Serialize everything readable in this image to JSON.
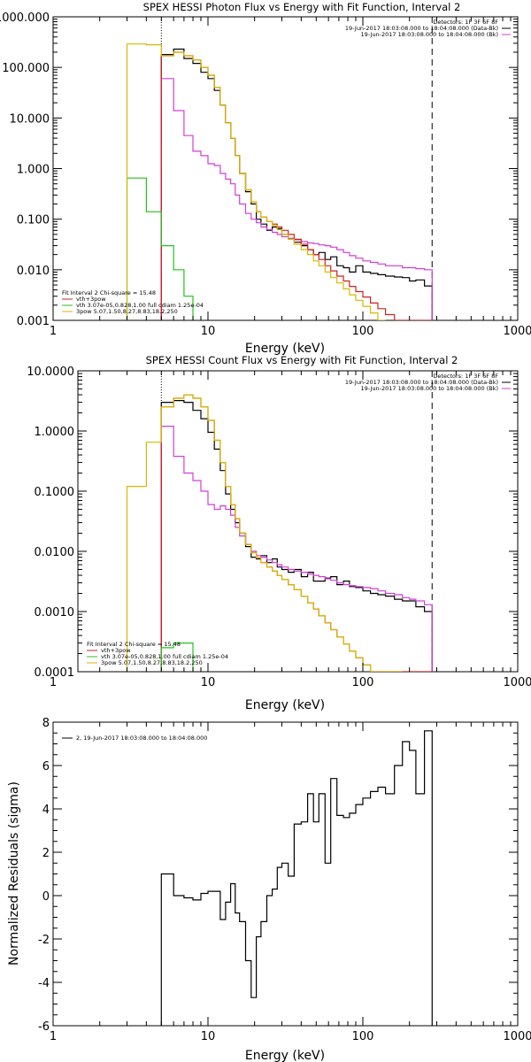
{
  "colors": {
    "black": "#000000",
    "magenta": "#d13ed6",
    "red": "#d22020",
    "green": "#22c41c",
    "yellow": "#d9b800"
  },
  "chart_data": [
    {
      "type": "line",
      "title": "SPEX HESSI Photon Flux vs Energy with Fit Function, Interval 2",
      "xlabel": "Energy (keV)",
      "ylabel": "",
      "xscale": "log",
      "yscale": "log",
      "xlim": [
        1,
        1000
      ],
      "ylim": [
        0.001,
        1000
      ],
      "xtick_labels": [
        "1",
        "10",
        "100",
        "1000"
      ],
      "ytick_labels": [
        "0.001",
        "0.010",
        "0.100",
        "1.000",
        "10.000",
        "100.000",
        "1000.000"
      ],
      "ytick_values": [
        0.001,
        0.01,
        0.1,
        1,
        10,
        100,
        1000
      ],
      "vlines": [
        {
          "x": 5.0,
          "style": "dotted"
        },
        {
          "x": 280,
          "style": "dashed"
        }
      ],
      "legend_top_right": [
        {
          "text": "Detectors: 1F 3F 6F 8F",
          "color": "black"
        },
        {
          "text": "19-Jun-2017 18:03:08.000 to 18:04:08.000 (Data-Bk)",
          "color": "black"
        },
        {
          "text": "19-Jun-2017 18:03:08.000 to 18:04:08.000 (Bk)",
          "color": "magenta"
        }
      ],
      "legend_bottom_left": [
        {
          "text": "Fit Interval 2   Chi-square = 15.48",
          "color": "black"
        },
        {
          "text": "vth+3pow",
          "color": "red"
        },
        {
          "text": "vth 3.07e-05,0.828,1.00  full cdiam 1.25e-04",
          "color": "green"
        },
        {
          "text": "3pow 5.07,1.50,8.27,8.83,18.2,250",
          "color": "yellow"
        }
      ],
      "series": [
        {
          "key": "data_bk",
          "color": "black",
          "edges": [
            5.0,
            6.0,
            7.0,
            8.0,
            9.0,
            10.0,
            11.0,
            12.0,
            13.0,
            14.0,
            15.0,
            16.0,
            17.5,
            19.0,
            20.5,
            22.0,
            24.0,
            26.0,
            28.0,
            30.0,
            33.0,
            36.0,
            40.0,
            44.0,
            48.0,
            52.0,
            57.0,
            62.0,
            68.0,
            75.0,
            82.0,
            90.0,
            100.0,
            112.0,
            125.0,
            140.0,
            160.0,
            180.0,
            200.0,
            220.0,
            250.0,
            280.0
          ],
          "values": [
            180,
            230,
            150,
            120,
            80,
            60,
            35,
            18,
            8,
            4,
            1.8,
            0.8,
            0.35,
            0.2,
            0.1,
            0.08,
            0.06,
            0.07,
            0.065,
            0.05,
            0.04,
            0.035,
            0.03,
            0.025,
            0.02,
            0.022,
            0.016,
            0.018,
            0.012,
            0.011,
            0.009,
            0.012,
            0.009,
            0.0085,
            0.008,
            0.0075,
            0.0072,
            0.007,
            0.006,
            0.0063,
            0.0048
          ]
        },
        {
          "key": "background",
          "color": "magenta",
          "edges": [
            5.0,
            6.0,
            7.0,
            8.0,
            9.0,
            10.0,
            11.0,
            12.0,
            13.0,
            14.0,
            15.0,
            16.0,
            17.5,
            19.0,
            20.5,
            22.0,
            24.0,
            26.0,
            28.0,
            30.0,
            33.0,
            36.0,
            40.0,
            44.0,
            48.0,
            52.0,
            57.0,
            62.0,
            68.0,
            75.0,
            82.0,
            90.0,
            100.0,
            112.0,
            125.0,
            140.0,
            160.0,
            180.0,
            200.0,
            220.0,
            250.0,
            280.0
          ],
          "values": [
            60,
            14,
            4.5,
            2.2,
            1.8,
            1.25,
            1.15,
            0.8,
            0.62,
            0.5,
            0.3,
            0.2,
            0.13,
            0.1,
            0.085,
            0.07,
            0.062,
            0.055,
            0.05,
            0.045,
            0.042,
            0.039,
            0.036,
            0.034,
            0.033,
            0.031,
            0.03,
            0.028,
            0.025,
            0.022,
            0.019,
            0.017,
            0.015,
            0.014,
            0.013,
            0.012,
            0.012,
            0.011,
            0.011,
            0.0105,
            0.01
          ]
        },
        {
          "key": "total_fit",
          "color": "red",
          "edges": [
            5.0,
            6.0,
            7.0,
            8.0,
            9.0,
            10.0,
            11.0,
            12.0,
            13.0,
            14.0,
            15.0,
            16.0,
            17.5,
            19.0,
            20.5,
            22.0,
            24.0,
            26.0,
            28.0,
            30.0,
            33.0,
            36.0,
            40.0,
            44.0,
            48.0,
            52.0,
            57.0,
            62.0,
            68.0,
            75.0,
            82.0,
            90.0,
            100.0,
            112.0,
            125.0,
            140.0,
            160.0,
            180.0,
            200.0,
            220.0,
            250.0,
            280.0
          ],
          "values": [
            170,
            200,
            170,
            140,
            100,
            70,
            40,
            18,
            8,
            4,
            1.8,
            0.8,
            0.38,
            0.22,
            0.14,
            0.11,
            0.09,
            0.08,
            0.07,
            0.06,
            0.05,
            0.04,
            0.032,
            0.025,
            0.02,
            0.016,
            0.012,
            0.0095,
            0.0075,
            0.006,
            0.0047,
            0.0037,
            0.0029,
            0.0022,
            0.0017,
            0.0013,
            0.001,
            0.001,
            0.001,
            0.001,
            0.001
          ]
        },
        {
          "key": "vth",
          "color": "green",
          "edges": [
            3.0,
            4.0,
            5.0,
            6.0,
            7.0,
            8.0
          ],
          "values": [
            0.65,
            0.14,
            0.03,
            0.01,
            0.003
          ]
        },
        {
          "key": "3pow",
          "color": "yellow",
          "edges": [
            3.0,
            4.0,
            5.0,
            6.0,
            7.0,
            8.0,
            9.0,
            10.0,
            11.0,
            12.0,
            13.0,
            14.0,
            15.0,
            16.0,
            17.5,
            19.0,
            20.5,
            22.0,
            24.0,
            26.0,
            28.0,
            30.0,
            33.0,
            36.0,
            40.0,
            44.0,
            48.0,
            52.0,
            57.0,
            62.0,
            68.0,
            75.0,
            82.0,
            90.0,
            100.0,
            112.0,
            125.0,
            140.0
          ],
          "values": [
            290,
            280,
            170,
            200,
            170,
            140,
            100,
            70,
            40,
            18,
            8,
            4,
            1.8,
            0.8,
            0.38,
            0.22,
            0.14,
            0.11,
            0.09,
            0.075,
            0.062,
            0.05,
            0.04,
            0.032,
            0.025,
            0.02,
            0.015,
            0.012,
            0.009,
            0.007,
            0.0055,
            0.0042,
            0.0032,
            0.0025,
            0.0019,
            0.0014,
            0.001
          ]
        }
      ]
    },
    {
      "type": "line",
      "title": "SPEX HESSI Count Flux vs Energy with Fit Function, Interval 2",
      "xlabel": "Energy (keV)",
      "ylabel": "",
      "xscale": "log",
      "yscale": "log",
      "xlim": [
        1,
        1000
      ],
      "ylim": [
        0.0001,
        10
      ],
      "xtick_labels": [
        "1",
        "10",
        "100",
        "1000"
      ],
      "ytick_labels": [
        "0.0001",
        "0.0010",
        "0.0100",
        "0.1000",
        "1.0000",
        "10.0000"
      ],
      "ytick_values": [
        0.0001,
        0.001,
        0.01,
        0.1,
        1,
        10
      ],
      "vlines": [
        {
          "x": 5.0,
          "style": "dotted"
        },
        {
          "x": 280,
          "style": "dashed"
        }
      ],
      "legend_top_right": [
        {
          "text": "Detectors: 1F 3F 6F 8F",
          "color": "black"
        },
        {
          "text": "19-Jun-2017 18:03:08.000 to 18:04:08.000 (Data-Bk)",
          "color": "black"
        },
        {
          "text": "19-Jun-2017 18:03:08.000 to 18:04:08.000 (Bk)",
          "color": "magenta"
        }
      ],
      "legend_bottom_left": [
        {
          "text": "Fit Interval 2   Chi-square = 15.48",
          "color": "black"
        },
        {
          "text": "vth+3pow",
          "color": "red"
        },
        {
          "text": "vth 3.07e-05,0.828,1.00  full cdiam 1.25e-04",
          "color": "green"
        },
        {
          "text": "3pow 5.07,1.50,8.27,8.83,18.2,250",
          "color": "yellow"
        }
      ],
      "series": [
        {
          "key": "data_bk",
          "color": "black",
          "edges": [
            5.0,
            6.0,
            7.0,
            8.0,
            9.0,
            10.0,
            11.0,
            12.0,
            13.0,
            14.0,
            15.0,
            16.0,
            17.5,
            19.0,
            20.5,
            22.0,
            24.0,
            26.0,
            28.0,
            30.0,
            33.0,
            36.0,
            40.0,
            44.0,
            48.0,
            52.0,
            57.0,
            62.0,
            68.0,
            75.0,
            82.0,
            90.0,
            100.0,
            112.0,
            125.0,
            140.0,
            160.0,
            180.0,
            200.0,
            220.0,
            250.0,
            280.0
          ],
          "values": [
            3.0,
            3.2,
            3.0,
            2.2,
            1.6,
            0.95,
            0.5,
            0.22,
            0.09,
            0.05,
            0.03,
            0.02,
            0.012,
            0.008,
            0.0075,
            0.0085,
            0.0065,
            0.0075,
            0.0055,
            0.005,
            0.0045,
            0.005,
            0.0038,
            0.0045,
            0.0032,
            0.0032,
            0.0036,
            0.0038,
            0.0028,
            0.0032,
            0.0026,
            0.0025,
            0.0022,
            0.002,
            0.0019,
            0.0018,
            0.0016,
            0.0015,
            0.0015,
            0.0012,
            0.001
          ]
        },
        {
          "key": "background",
          "color": "magenta",
          "edges": [
            5.0,
            6.0,
            7.0,
            8.0,
            9.0,
            10.0,
            11.0,
            12.0,
            13.0,
            14.0,
            15.0,
            16.0,
            17.5,
            19.0,
            20.5,
            22.0,
            24.0,
            26.0,
            28.0,
            30.0,
            33.0,
            36.0,
            40.0,
            44.0,
            48.0,
            52.0,
            57.0,
            62.0,
            68.0,
            75.0,
            82.0,
            90.0,
            100.0,
            112.0,
            125.0,
            140.0,
            160.0,
            180.0,
            200.0,
            220.0,
            250.0,
            280.0
          ],
          "values": [
            1.2,
            0.38,
            0.2,
            0.15,
            0.1,
            0.06,
            0.05,
            0.057,
            0.05,
            0.04,
            0.025,
            0.018,
            0.013,
            0.01,
            0.0085,
            0.008,
            0.0072,
            0.0065,
            0.006,
            0.0055,
            0.005,
            0.0047,
            0.0045,
            0.0042,
            0.004,
            0.0038,
            0.0035,
            0.0033,
            0.003,
            0.0028,
            0.0027,
            0.0026,
            0.0025,
            0.0024,
            0.0022,
            0.002,
            0.0019,
            0.0017,
            0.0016,
            0.0015,
            0.0013
          ]
        },
        {
          "key": "total_fit",
          "color": "red",
          "edges": [
            5.0,
            6.0,
            7.0,
            8.0,
            9.0,
            10.0,
            11.0,
            12.0,
            13.0,
            14.0,
            15.0,
            16.0,
            17.5,
            19.0,
            20.5,
            22.0,
            24.0,
            26.0,
            28.0,
            30.0,
            33.0,
            36.0,
            40.0,
            44.0,
            48.0,
            52.0,
            57.0,
            62.0,
            68.0,
            75.0,
            82.0,
            90.0,
            100.0,
            112.0,
            125.0,
            140.0,
            160.0,
            180.0,
            200.0,
            220.0,
            250.0,
            280.0
          ],
          "values": [
            2.5,
            3.5,
            4.0,
            3.5,
            2.5,
            1.5,
            0.7,
            0.3,
            0.12,
            0.06,
            0.035,
            0.02,
            0.013,
            0.0095,
            0.0078,
            0.0065,
            0.0055,
            0.0047,
            0.004,
            0.0034,
            0.0028,
            0.0023,
            0.0018,
            0.0014,
            0.0011,
            0.00085,
            0.00065,
            0.0005,
            0.00038,
            0.00029,
            0.00022,
            0.00017,
            0.00013,
            0.0001,
            0.0001,
            0.0001,
            0.0001,
            0.0001,
            0.0001,
            0.0001,
            0.0001
          ]
        },
        {
          "key": "vth",
          "color": "green",
          "edges": [
            5.0,
            6.0,
            7.0,
            8.0
          ],
          "values": [
            0.00025,
            0.0003,
            0.0003
          ]
        },
        {
          "key": "3pow",
          "color": "yellow",
          "edges": [
            3.0,
            4.0,
            5.0,
            6.0,
            7.0,
            8.0,
            9.0,
            10.0,
            11.0,
            12.0,
            13.0,
            14.0,
            15.0,
            16.0,
            17.5,
            19.0,
            20.5,
            22.0,
            24.0,
            26.0,
            28.0,
            30.0,
            33.0,
            36.0,
            40.0,
            44.0,
            48.0,
            52.0,
            57.0,
            62.0,
            68.0,
            75.0,
            82.0,
            90.0,
            100.0,
            112.0,
            125.0,
            140.0,
            160.0,
            180.0
          ],
          "values": [
            0.12,
            0.65,
            2.5,
            3.5,
            4.0,
            3.5,
            2.5,
            1.5,
            0.7,
            0.3,
            0.12,
            0.06,
            0.035,
            0.02,
            0.013,
            0.0095,
            0.0078,
            0.0065,
            0.0055,
            0.0047,
            0.004,
            0.0034,
            0.0028,
            0.0023,
            0.0018,
            0.0014,
            0.0011,
            0.00085,
            0.00065,
            0.0005,
            0.00038,
            0.00029,
            0.00022,
            0.00017,
            0.00013,
            0.0001,
            0.0001,
            0.0001,
            0.0001
          ]
        }
      ]
    },
    {
      "type": "line",
      "title": "",
      "xlabel": "Energy (keV)",
      "ylabel": "Normalized Residuals (sigma)",
      "xscale": "log",
      "yscale": "linear",
      "xlim": [
        1,
        1000
      ],
      "ylim": [
        -6,
        8
      ],
      "xtick_labels": [
        "1",
        "10",
        "100",
        "1000"
      ],
      "ytick_labels": [
        "-6",
        "-4",
        "-2",
        "0",
        "2",
        "4",
        "6",
        "8"
      ],
      "ytick_values": [
        -6,
        -4,
        -2,
        0,
        2,
        4,
        6,
        8
      ],
      "legend_top_left": [
        {
          "text": "2, 19-Jun-2017 18:03:08.000 to 18:04:08.000",
          "color": "black"
        }
      ],
      "series": [
        {
          "key": "residuals",
          "color": "black",
          "edges": [
            5.0,
            6.0,
            7.0,
            8.0,
            9.0,
            10.0,
            11.0,
            12.0,
            13.0,
            14.0,
            15.0,
            16.0,
            17.5,
            19.0,
            20.5,
            22.0,
            24.0,
            26.0,
            28.0,
            30.0,
            33.0,
            36.0,
            40.0,
            44.0,
            48.0,
            52.0,
            57.0,
            62.0,
            68.0,
            75.0,
            82.0,
            90.0,
            100.0,
            112.0,
            125.0,
            140.0,
            160.0,
            180.0,
            200.0,
            220.0,
            250.0,
            280.0
          ],
          "values": [
            1.0,
            0.0,
            -0.1,
            -0.2,
            0.1,
            0.2,
            0.2,
            -1.1,
            -0.3,
            0.55,
            -0.8,
            -1.2,
            -3.0,
            -4.7,
            -1.9,
            -1.2,
            0.0,
            0.3,
            1.3,
            1.5,
            0.9,
            3.3,
            3.4,
            4.7,
            3.4,
            4.7,
            1.5,
            5.4,
            3.7,
            3.6,
            3.8,
            4.2,
            4.5,
            4.8,
            5.0,
            4.7,
            6.0,
            7.1,
            6.7,
            4.7,
            7.6
          ]
        }
      ]
    }
  ]
}
